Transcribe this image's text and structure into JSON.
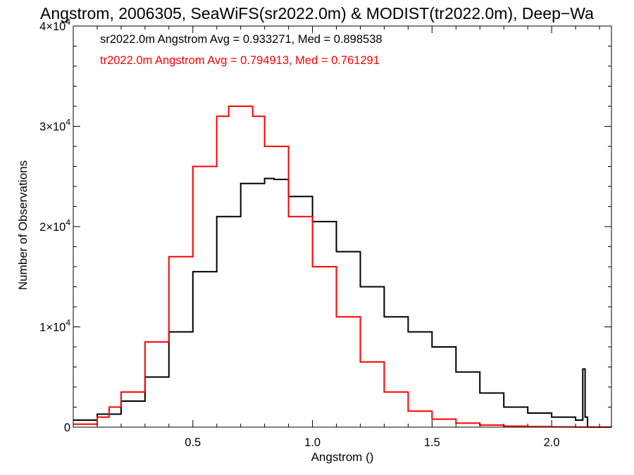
{
  "chart_data": {
    "type": "line",
    "title": "Angstrom, 2006305, SeaWiFS(sr2022.0m) & MODIST(tr2022.0m), Deep−Wa",
    "xlabel": "Angstrom ()",
    "ylabel": "Number of Observations",
    "xlim": [
      0.0,
      2.25
    ],
    "ylim": [
      0,
      40000
    ],
    "x_ticks": [
      0.5,
      1.0,
      1.5,
      2.0
    ],
    "x_tick_labels": [
      "0.5",
      "1.0",
      "1.5",
      "2.0"
    ],
    "y_ticks": [
      0,
      10000,
      20000,
      30000,
      40000
    ],
    "y_tick_labels": [
      {
        "mantissa": "0",
        "exponent": ""
      },
      {
        "mantissa": "1×10",
        "exponent": "4"
      },
      {
        "mantissa": "2×10",
        "exponent": "4"
      },
      {
        "mantissa": "3×10",
        "exponent": "4"
      },
      {
        "mantissa": "4×10",
        "exponent": "4"
      }
    ],
    "grid": false,
    "legend_position": "top-left",
    "annotations": [
      {
        "text": "sr2022.0m Angstrom Avg = 0.933271, Med = 0.898538",
        "color": "#000000"
      },
      {
        "text": "tr2022.0m Angstrom Avg = 0.794913, Med = 0.761291",
        "color": "#ff0000"
      }
    ],
    "series": [
      {
        "name": "sr2022.0m",
        "color": "#000000",
        "x": [
          0.0,
          0.1,
          0.2,
          0.3,
          0.4,
          0.5,
          0.6,
          0.7,
          0.8,
          0.84,
          0.9,
          1.0,
          1.1,
          1.2,
          1.3,
          1.4,
          1.5,
          1.6,
          1.7,
          1.8,
          1.9,
          2.0,
          2.1,
          2.13,
          2.14,
          2.15,
          2.16,
          2.25
        ],
        "values": [
          700,
          1300,
          2600,
          5000,
          9500,
          15500,
          21000,
          24300,
          24800,
          24700,
          23000,
          20500,
          17500,
          14000,
          11000,
          9500,
          8000,
          5500,
          3400,
          2000,
          1400,
          1000,
          700,
          5800,
          1000,
          0,
          0,
          0
        ]
      },
      {
        "name": "tr2022.0m",
        "color": "#ff0000",
        "x": [
          0.0,
          0.1,
          0.15,
          0.2,
          0.3,
          0.4,
          0.5,
          0.6,
          0.65,
          0.7,
          0.75,
          0.8,
          0.9,
          1.0,
          1.1,
          1.2,
          1.3,
          1.4,
          1.5,
          1.6,
          1.7,
          1.8,
          1.9,
          2.0,
          2.1,
          2.25
        ],
        "values": [
          300,
          1000,
          2000,
          3500,
          8500,
          17000,
          26000,
          31000,
          32000,
          32000,
          31000,
          28000,
          21000,
          16000,
          11000,
          6500,
          3500,
          1600,
          800,
          400,
          200,
          100,
          50,
          30,
          10,
          0
        ]
      }
    ]
  }
}
